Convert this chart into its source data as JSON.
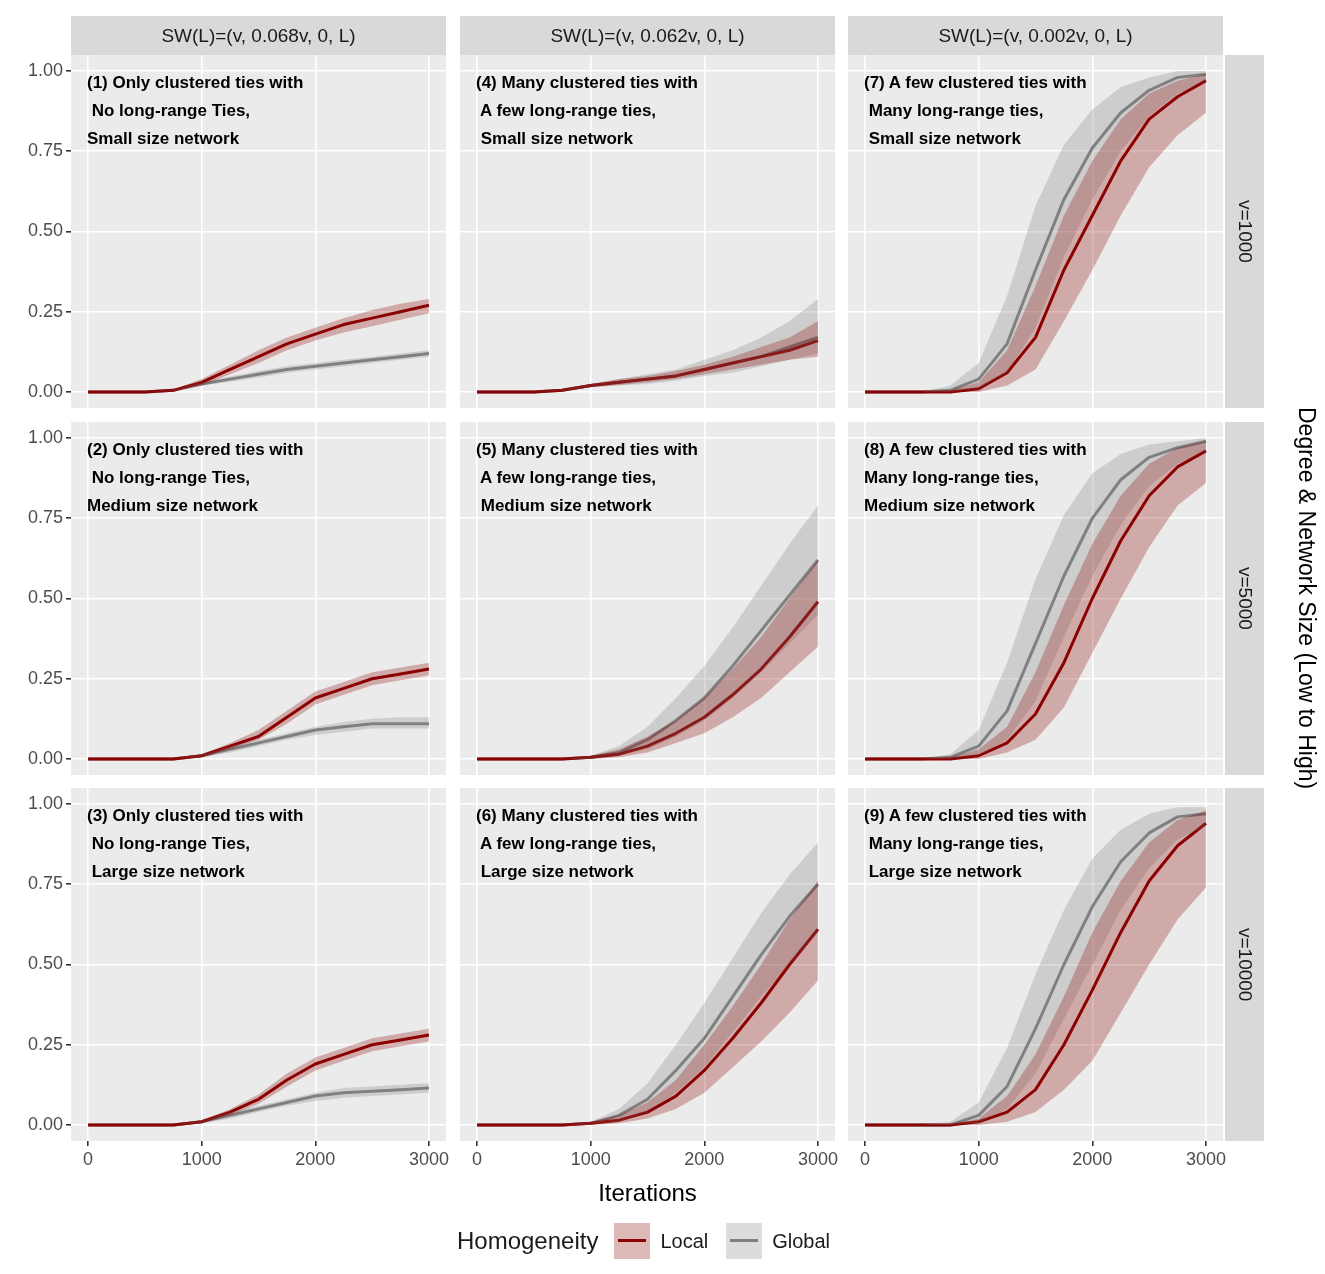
{
  "chart_data": [
    {
      "type": "line",
      "title": "SW(L)=(v, 0.068v, 0, L)",
      "annotations": [
        "(1) Only clustered ties with\n No long-range Ties,\nSmall size network"
      ],
      "x": [
        0,
        250,
        500,
        750,
        1000,
        1250,
        1500,
        1750,
        2000,
        2250,
        2500,
        2750,
        3000
      ],
      "xlim": [
        -150,
        3150
      ],
      "ylim": [
        -0.05,
        1.05
      ],
      "xticks": [
        0,
        1000,
        2000,
        3000
      ],
      "yticks": [
        {
          "value": 0,
          "label": "0.00"
        },
        {
          "value": 0.25,
          "label": "0.25"
        },
        {
          "value": 0.5,
          "label": "0.50"
        },
        {
          "value": 0.75,
          "label": "0.75"
        },
        {
          "value": 1,
          "label": "1.00"
        }
      ],
      "grid": true,
      "tick_labels": "y",
      "series": [
        {
          "color": "#8b0000",
          "values": [
            0,
            0,
            0,
            0.005,
            0.03,
            0.07,
            0.11,
            0.15,
            0.18,
            0.21,
            0.23,
            0.25,
            0.27
          ],
          "lower": [
            0,
            0,
            0,
            0.003,
            0.02,
            0.055,
            0.09,
            0.13,
            0.16,
            0.185,
            0.205,
            0.225,
            0.245
          ],
          "upper": [
            0,
            0,
            0,
            0.008,
            0.04,
            0.085,
            0.13,
            0.17,
            0.2,
            0.23,
            0.255,
            0.275,
            0.29
          ]
        },
        {
          "color": "#808080",
          "values": [
            0,
            0,
            0,
            0.005,
            0.025,
            0.04,
            0.055,
            0.07,
            0.08,
            0.09,
            0.1,
            0.11,
            0.12
          ],
          "lower": [
            0,
            0,
            0,
            0.003,
            0.02,
            0.032,
            0.045,
            0.06,
            0.07,
            0.08,
            0.09,
            0.1,
            0.11
          ],
          "upper": [
            0,
            0,
            0,
            0.008,
            0.03,
            0.048,
            0.065,
            0.08,
            0.09,
            0.1,
            0.11,
            0.12,
            0.13
          ]
        }
      ]
    },
    {
      "type": "line",
      "title": "SW(L)=(v, 0.062v, 0, L)",
      "annotations": [
        "(4) Many clustered ties with\n A few long-range ties,\n Small size network"
      ],
      "x": [
        0,
        250,
        500,
        750,
        1000,
        1250,
        1500,
        1750,
        2000,
        2250,
        2500,
        2750,
        3000
      ],
      "xlim": [
        -150,
        3150
      ],
      "ylim": [
        -0.05,
        1.05
      ],
      "xticks": [
        0,
        1000,
        2000,
        3000
      ],
      "yticks": [
        0,
        0.25,
        0.5,
        0.75,
        1
      ],
      "grid": true,
      "tick_labels": false,
      "series": [
        {
          "color": "#8b0000",
          "values": [
            0,
            0,
            0,
            0.005,
            0.02,
            0.03,
            0.04,
            0.05,
            0.07,
            0.09,
            0.11,
            0.13,
            0.16
          ],
          "lower": [
            0,
            0,
            0,
            0.003,
            0.015,
            0.022,
            0.03,
            0.04,
            0.055,
            0.07,
            0.085,
            0.1,
            0.11
          ],
          "upper": [
            0,
            0,
            0,
            0.008,
            0.025,
            0.04,
            0.05,
            0.065,
            0.085,
            0.11,
            0.14,
            0.17,
            0.22
          ]
        },
        {
          "color": "#808080",
          "values": [
            0,
            0,
            0,
            0.005,
            0.02,
            0.03,
            0.04,
            0.05,
            0.07,
            0.09,
            0.11,
            0.14,
            0.17
          ],
          "lower": [
            0,
            0,
            0,
            0.003,
            0.015,
            0.02,
            0.025,
            0.035,
            0.05,
            0.06,
            0.08,
            0.1,
            0.12
          ],
          "upper": [
            0,
            0,
            0,
            0.008,
            0.025,
            0.04,
            0.055,
            0.07,
            0.1,
            0.13,
            0.17,
            0.22,
            0.29
          ]
        }
      ]
    },
    {
      "type": "line",
      "title": "SW(L)=(v, 0.002v, 0, L)",
      "y2label": "v=1000",
      "annotations": [
        "(7) A few clustered ties with\n Many long-range ties,\n Small size network"
      ],
      "x": [
        0,
        250,
        500,
        750,
        1000,
        1250,
        1500,
        1750,
        2000,
        2250,
        2500,
        2750,
        3000
      ],
      "xlim": [
        -150,
        3150
      ],
      "ylim": [
        -0.05,
        1.05
      ],
      "xticks": [
        0,
        1000,
        2000,
        3000
      ],
      "yticks": [
        0,
        0.25,
        0.5,
        0.75,
        1
      ],
      "grid": true,
      "tick_labels": false,
      "series": [
        {
          "color": "#8b0000",
          "values": [
            0,
            0,
            0,
            0,
            0.01,
            0.06,
            0.17,
            0.38,
            0.55,
            0.72,
            0.85,
            0.92,
            0.97
          ],
          "lower": [
            0,
            0,
            0,
            0,
            0,
            0.02,
            0.07,
            0.22,
            0.38,
            0.55,
            0.7,
            0.8,
            0.87
          ],
          "upper": [
            0,
            0,
            0,
            0.005,
            0.03,
            0.13,
            0.33,
            0.55,
            0.72,
            0.85,
            0.93,
            0.97,
            0.99
          ]
        },
        {
          "color": "#808080",
          "values": [
            0,
            0,
            0,
            0.005,
            0.04,
            0.15,
            0.38,
            0.6,
            0.76,
            0.87,
            0.94,
            0.98,
            0.99
          ],
          "lower": [
            0,
            0,
            0,
            0,
            0.01,
            0.06,
            0.2,
            0.42,
            0.6,
            0.75,
            0.86,
            0.93,
            0.97
          ],
          "upper": [
            0,
            0,
            0,
            0.02,
            0.09,
            0.3,
            0.58,
            0.77,
            0.88,
            0.95,
            0.98,
            1,
            1
          ]
        }
      ]
    },
    {
      "type": "line",
      "annotations": [
        "(2) Only clustered ties with\n No long-range Ties,\nMedium size network"
      ],
      "x": [
        0,
        250,
        500,
        750,
        1000,
        1250,
        1500,
        1750,
        2000,
        2250,
        2500,
        2750,
        3000
      ],
      "xlim": [
        -150,
        3150
      ],
      "ylim": [
        -0.05,
        1.05
      ],
      "xticks": [
        0,
        1000,
        2000,
        3000
      ],
      "yticks": [
        {
          "value": 0,
          "label": "0.00"
        },
        {
          "value": 0.25,
          "label": "0.25"
        },
        {
          "value": 0.5,
          "label": "0.50"
        },
        {
          "value": 0.75,
          "label": "0.75"
        },
        {
          "value": 1,
          "label": "1.00"
        }
      ],
      "grid": true,
      "tick_labels": "y",
      "series": [
        {
          "color": "#8b0000",
          "values": [
            0,
            0,
            0,
            0,
            0.01,
            0.04,
            0.07,
            0.13,
            0.19,
            0.22,
            0.25,
            0.265,
            0.28
          ],
          "lower": [
            0,
            0,
            0,
            0,
            0.005,
            0.03,
            0.06,
            0.11,
            0.17,
            0.2,
            0.23,
            0.245,
            0.26
          ],
          "upper": [
            0,
            0,
            0,
            0,
            0.015,
            0.05,
            0.09,
            0.15,
            0.21,
            0.24,
            0.27,
            0.285,
            0.3
          ]
        },
        {
          "color": "#808080",
          "values": [
            0,
            0,
            0,
            0,
            0.01,
            0.03,
            0.05,
            0.07,
            0.09,
            0.1,
            0.11,
            0.11,
            0.11
          ],
          "lower": [
            0,
            0,
            0,
            0,
            0.005,
            0.02,
            0.04,
            0.06,
            0.075,
            0.085,
            0.095,
            0.095,
            0.095
          ],
          "upper": [
            0,
            0,
            0,
            0,
            0.015,
            0.04,
            0.06,
            0.08,
            0.1,
            0.115,
            0.125,
            0.13,
            0.13
          ]
        }
      ]
    },
    {
      "type": "line",
      "annotations": [
        "(5) Many clustered ties with\n A few long-range ties,\n Medium size network"
      ],
      "x": [
        0,
        250,
        500,
        750,
        1000,
        1250,
        1500,
        1750,
        2000,
        2250,
        2500,
        2750,
        3000
      ],
      "xlim": [
        -150,
        3150
      ],
      "ylim": [
        -0.05,
        1.05
      ],
      "xticks": [
        0,
        1000,
        2000,
        3000
      ],
      "yticks": [
        0,
        0.25,
        0.5,
        0.75,
        1
      ],
      "grid": true,
      "tick_labels": false,
      "series": [
        {
          "color": "#8b0000",
          "values": [
            0,
            0,
            0,
            0,
            0.005,
            0.015,
            0.04,
            0.08,
            0.13,
            0.2,
            0.28,
            0.38,
            0.49
          ],
          "lower": [
            0,
            0,
            0,
            0,
            0,
            0.005,
            0.02,
            0.05,
            0.08,
            0.13,
            0.19,
            0.27,
            0.35
          ],
          "upper": [
            0,
            0,
            0,
            0,
            0.01,
            0.03,
            0.07,
            0.12,
            0.19,
            0.28,
            0.38,
            0.5,
            0.62
          ]
        },
        {
          "color": "#808080",
          "values": [
            0,
            0,
            0,
            0,
            0.005,
            0.02,
            0.06,
            0.12,
            0.19,
            0.29,
            0.4,
            0.51,
            0.62
          ],
          "lower": [
            0,
            0,
            0,
            0,
            0,
            0.01,
            0.03,
            0.07,
            0.12,
            0.19,
            0.27,
            0.36,
            0.45
          ],
          "upper": [
            0,
            0,
            0,
            0,
            0.01,
            0.04,
            0.1,
            0.19,
            0.29,
            0.41,
            0.54,
            0.67,
            0.79
          ]
        }
      ]
    },
    {
      "type": "line",
      "y2label": "v=5000",
      "ylabel": "Degree & Network Size (Low to High)",
      "annotations": [
        "(8) A few clustered ties with\nMany long-range ties,\nMedium size network"
      ],
      "x": [
        0,
        250,
        500,
        750,
        1000,
        1250,
        1500,
        1750,
        2000,
        2250,
        2500,
        2750,
        3000
      ],
      "xlim": [
        -150,
        3150
      ],
      "ylim": [
        -0.05,
        1.05
      ],
      "xticks": [
        0,
        1000,
        2000,
        3000
      ],
      "yticks": [
        0,
        0.25,
        0.5,
        0.75,
        1
      ],
      "grid": true,
      "tick_labels": false,
      "series": [
        {
          "color": "#8b0000",
          "values": [
            0,
            0,
            0,
            0,
            0.01,
            0.05,
            0.14,
            0.3,
            0.5,
            0.68,
            0.82,
            0.91,
            0.96
          ],
          "lower": [
            0,
            0,
            0,
            0,
            0,
            0.02,
            0.06,
            0.16,
            0.33,
            0.5,
            0.66,
            0.79,
            0.86
          ],
          "upper": [
            0,
            0,
            0,
            0.005,
            0.03,
            0.1,
            0.27,
            0.48,
            0.67,
            0.82,
            0.92,
            0.97,
            0.99
          ]
        },
        {
          "color": "#808080",
          "values": [
            0,
            0,
            0,
            0.005,
            0.04,
            0.15,
            0.36,
            0.57,
            0.75,
            0.87,
            0.94,
            0.97,
            0.99
          ],
          "lower": [
            0,
            0,
            0,
            0,
            0.01,
            0.06,
            0.18,
            0.38,
            0.57,
            0.73,
            0.85,
            0.92,
            0.96
          ],
          "upper": [
            0,
            0,
            0,
            0.015,
            0.09,
            0.3,
            0.56,
            0.76,
            0.89,
            0.95,
            0.98,
            0.99,
            1
          ]
        }
      ]
    },
    {
      "type": "line",
      "annotations": [
        "(3) Only clustered ties with\n No long-range Ties,\n Large size network"
      ],
      "x": [
        0,
        250,
        500,
        750,
        1000,
        1250,
        1500,
        1750,
        2000,
        2250,
        2500,
        2750,
        3000
      ],
      "xlim": [
        -150,
        3150
      ],
      "ylim": [
        -0.05,
        1.05
      ],
      "xticks": [
        0,
        1000,
        2000,
        3000
      ],
      "yticks": [
        {
          "value": 0,
          "label": "0.00"
        },
        {
          "value": 0.25,
          "label": "0.25"
        },
        {
          "value": 0.5,
          "label": "0.50"
        },
        {
          "value": 0.75,
          "label": "0.75"
        },
        {
          "value": 1,
          "label": "1.00"
        }
      ],
      "grid": true,
      "series": [
        {
          "color": "#8b0000",
          "values": [
            0,
            0,
            0,
            0,
            0.01,
            0.04,
            0.08,
            0.14,
            0.19,
            0.22,
            0.25,
            0.265,
            0.28
          ],
          "lower": [
            0,
            0,
            0,
            0,
            0.005,
            0.03,
            0.065,
            0.12,
            0.17,
            0.2,
            0.23,
            0.245,
            0.26
          ],
          "upper": [
            0,
            0,
            0,
            0,
            0.015,
            0.05,
            0.095,
            0.16,
            0.21,
            0.24,
            0.27,
            0.285,
            0.3
          ]
        },
        {
          "color": "#808080",
          "values": [
            0,
            0,
            0,
            0,
            0.01,
            0.03,
            0.05,
            0.07,
            0.09,
            0.1,
            0.105,
            0.11,
            0.115
          ],
          "lower": [
            0,
            0,
            0,
            0,
            0.005,
            0.02,
            0.04,
            0.06,
            0.075,
            0.085,
            0.09,
            0.095,
            0.1
          ],
          "upper": [
            0,
            0,
            0,
            0,
            0.015,
            0.04,
            0.06,
            0.08,
            0.1,
            0.115,
            0.12,
            0.125,
            0.13
          ]
        }
      ]
    },
    {
      "type": "line",
      "xlabel": "Iterations",
      "legend": "bottom",
      "legend_title": "Homogeneity",
      "annotations": [
        "(6) Many clustered ties with\n A few long-range ties,\n Large size network"
      ],
      "x": [
        0,
        250,
        500,
        750,
        1000,
        1250,
        1500,
        1750,
        2000,
        2250,
        2500,
        2750,
        3000
      ],
      "xlim": [
        -150,
        3150
      ],
      "ylim": [
        -0.05,
        1.05
      ],
      "xticks": [
        0,
        1000,
        2000,
        3000
      ],
      "yticks": [
        0,
        0.25,
        0.5,
        0.75,
        1
      ],
      "grid": true,
      "tick_labels": "x",
      "series": [
        {
          "name": "Local",
          "color": "#8b0000",
          "values": [
            0,
            0,
            0,
            0,
            0.005,
            0.015,
            0.04,
            0.09,
            0.17,
            0.27,
            0.38,
            0.5,
            0.61
          ],
          "lower": [
            0,
            0,
            0,
            0,
            0,
            0.005,
            0.02,
            0.05,
            0.1,
            0.18,
            0.26,
            0.35,
            0.45
          ],
          "upper": [
            0,
            0,
            0,
            0,
            0.01,
            0.03,
            0.07,
            0.14,
            0.25,
            0.37,
            0.5,
            0.64,
            0.76
          ]
        },
        {
          "name": "Global",
          "color": "#808080",
          "values": [
            0,
            0,
            0,
            0,
            0.005,
            0.03,
            0.08,
            0.17,
            0.27,
            0.4,
            0.53,
            0.65,
            0.75
          ],
          "lower": [
            0,
            0,
            0,
            0,
            0,
            0.01,
            0.04,
            0.1,
            0.18,
            0.29,
            0.4,
            0.5,
            0.6
          ],
          "upper": [
            0,
            0,
            0,
            0,
            0.01,
            0.05,
            0.13,
            0.25,
            0.38,
            0.52,
            0.66,
            0.78,
            0.88
          ]
        }
      ]
    },
    {
      "type": "line",
      "y2label": "v=10000",
      "annotations": [
        "(9) A few clustered ties with\n Many long-range ties,\n Large size network"
      ],
      "x": [
        0,
        250,
        500,
        750,
        1000,
        1250,
        1500,
        1750,
        2000,
        2250,
        2500,
        2750,
        3000
      ],
      "xlim": [
        -150,
        3150
      ],
      "ylim": [
        -0.05,
        1.05
      ],
      "xticks": [
        0,
        1000,
        2000,
        3000
      ],
      "yticks": [
        0,
        0.25,
        0.5,
        0.75,
        1
      ],
      "grid": true,
      "tick_labels": "x",
      "series": [
        {
          "color": "#8b0000",
          "values": [
            0,
            0,
            0,
            0,
            0.01,
            0.04,
            0.11,
            0.25,
            0.42,
            0.6,
            0.76,
            0.87,
            0.94
          ],
          "lower": [
            0,
            0,
            0,
            0,
            0,
            0.01,
            0.04,
            0.11,
            0.2,
            0.35,
            0.5,
            0.64,
            0.74
          ],
          "upper": [
            0,
            0,
            0,
            0,
            0.02,
            0.09,
            0.22,
            0.4,
            0.6,
            0.76,
            0.88,
            0.95,
            0.98
          ]
        },
        {
          "color": "#808080",
          "values": [
            0,
            0,
            0,
            0,
            0.03,
            0.12,
            0.3,
            0.5,
            0.68,
            0.82,
            0.91,
            0.96,
            0.97
          ],
          "lower": [
            0,
            0,
            0,
            0,
            0.005,
            0.05,
            0.16,
            0.33,
            0.5,
            0.67,
            0.8,
            0.89,
            0.93
          ],
          "upper": [
            0,
            0,
            0,
            0.01,
            0.07,
            0.24,
            0.47,
            0.67,
            0.83,
            0.92,
            0.97,
            0.99,
            0.99
          ]
        }
      ]
    }
  ]
}
